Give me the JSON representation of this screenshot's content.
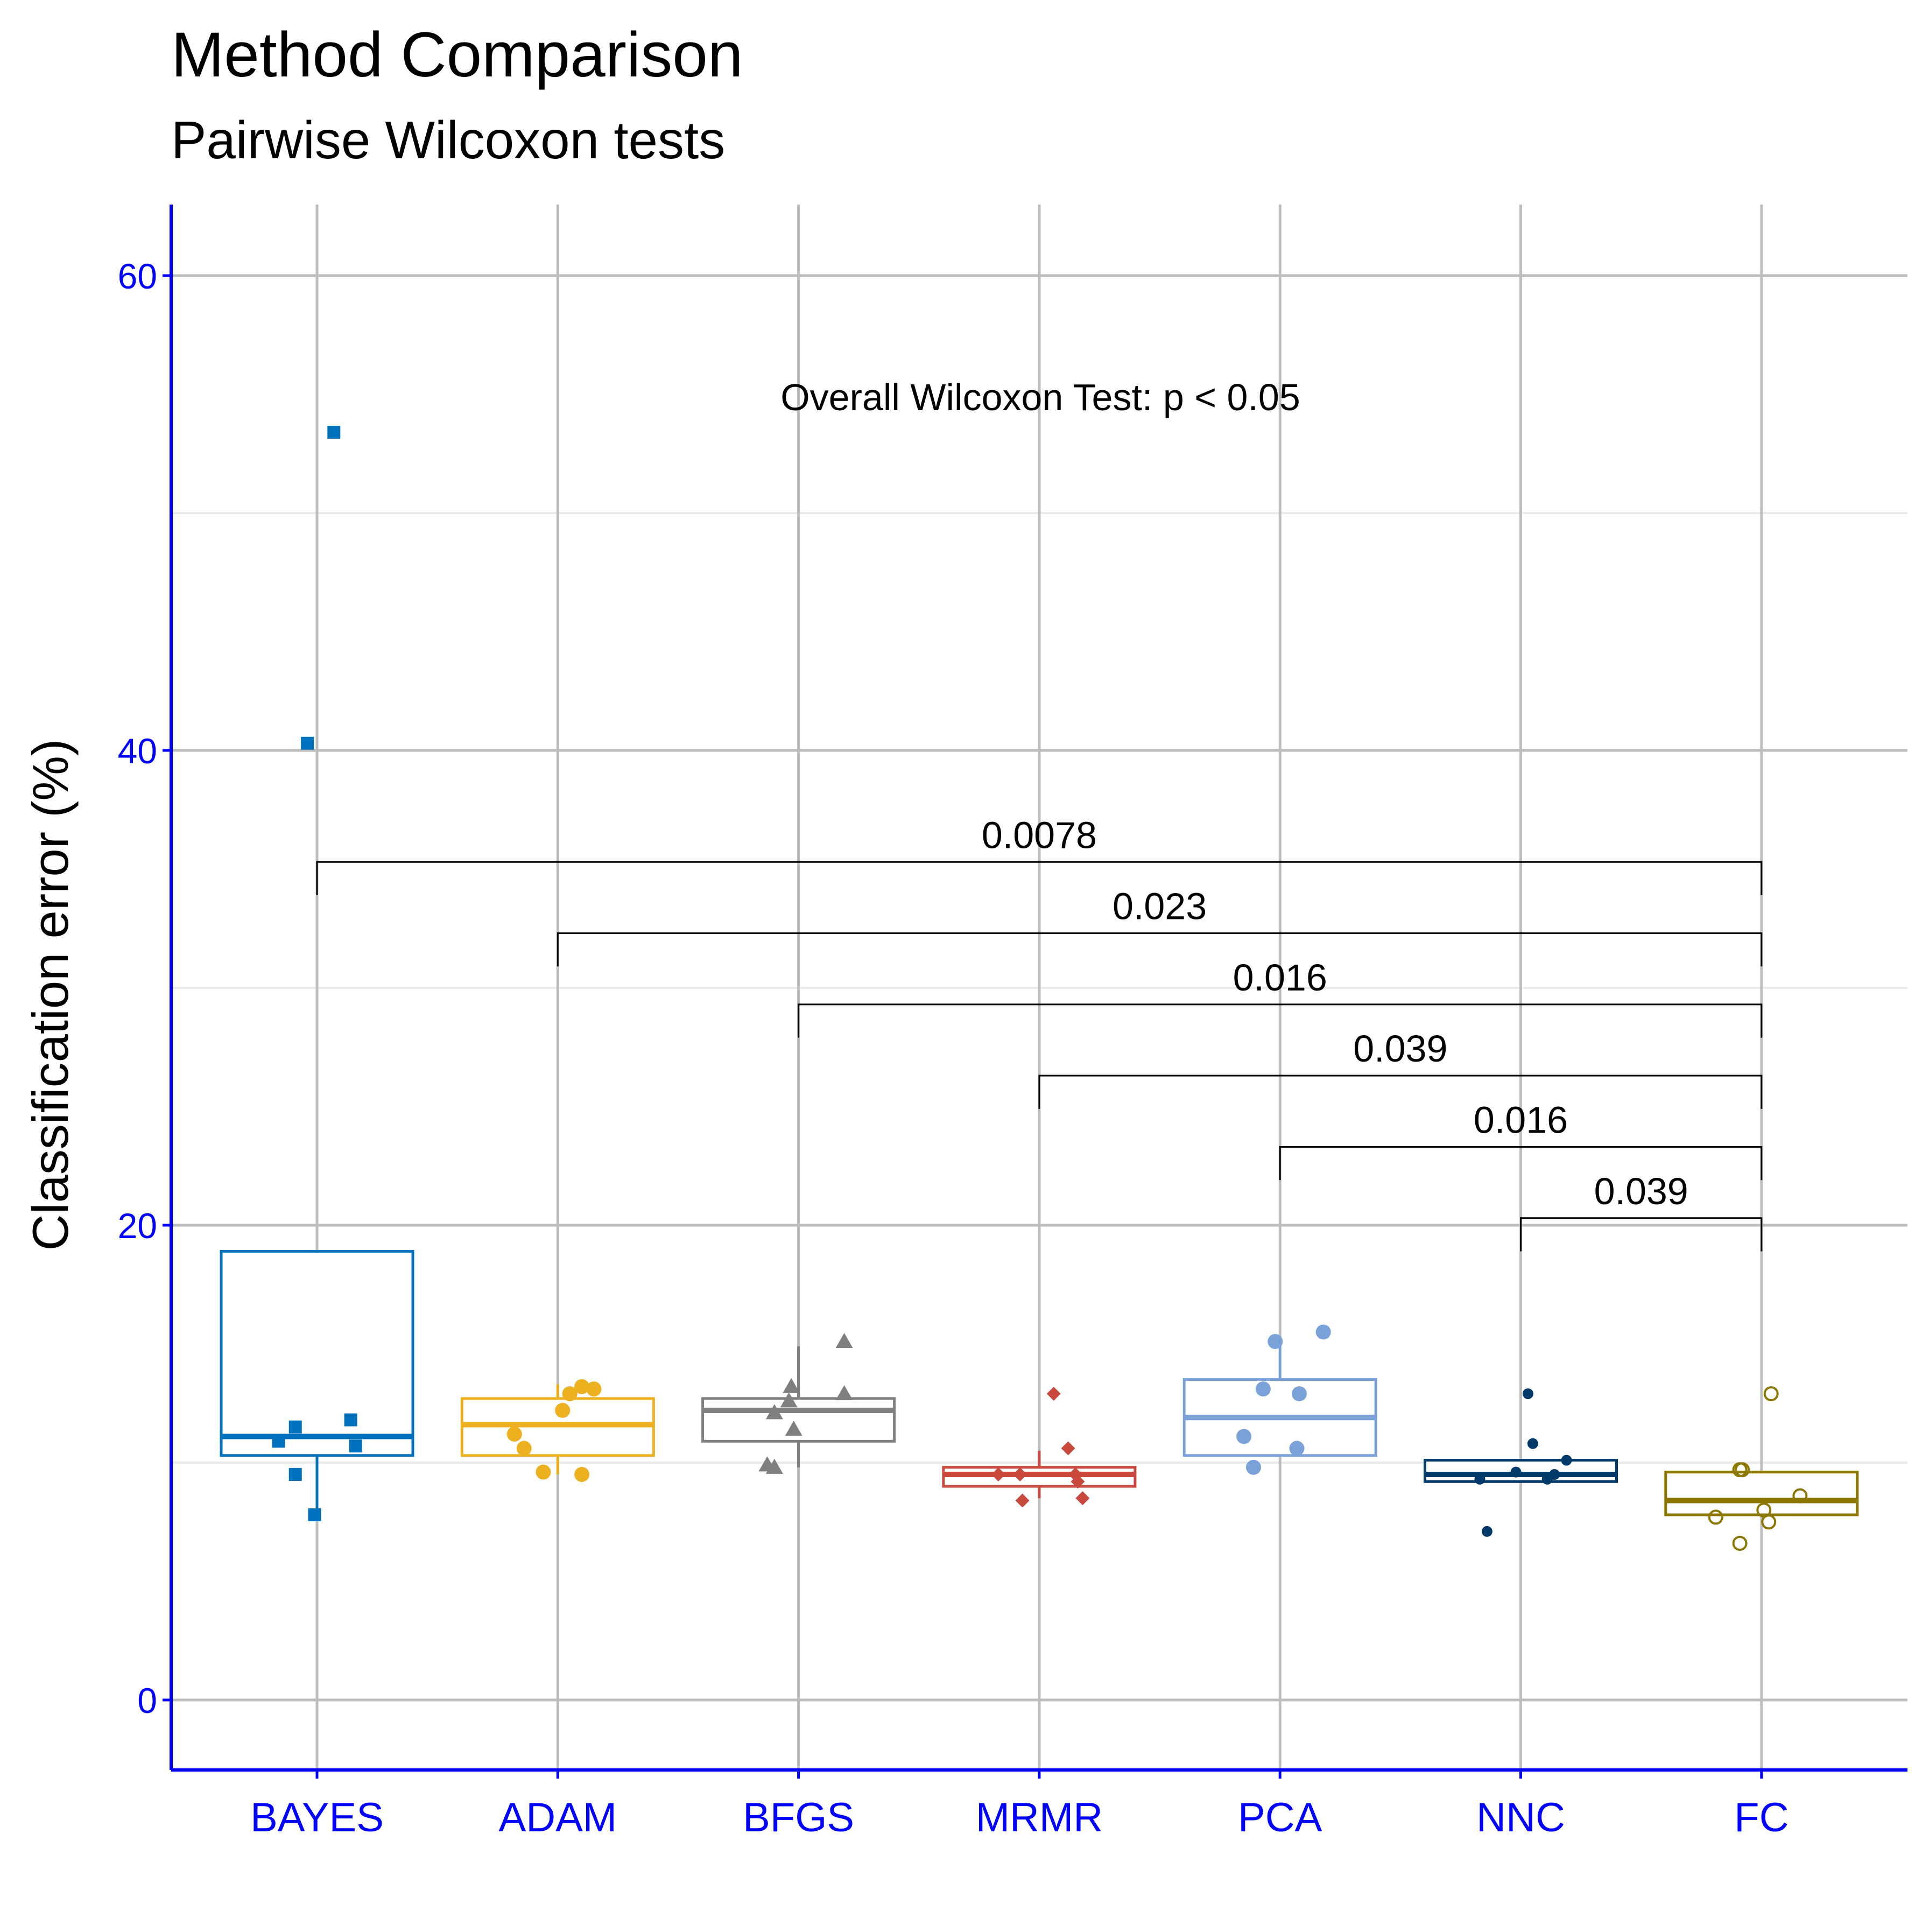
{
  "chart_data": {
    "type": "box",
    "title": "Method Comparison",
    "subtitle": "Pairwise Wilcoxon tests",
    "ylabel": "Classification error (%)",
    "xlabel": "",
    "ylim": [
      -3,
      63
    ],
    "yticks": [
      "0",
      "20",
      "40",
      "60"
    ],
    "grid": true,
    "annotation": "Overall Wilcoxon Test: p < 0.05",
    "categories": [
      "BAYES",
      "ADAM",
      "BFGS",
      "MRMR",
      "PCA",
      "NNC",
      "FC"
    ],
    "series": [
      {
        "category": "BAYES",
        "color": "#0072bd",
        "marker": "square",
        "box": {
          "q1": 10.3,
          "median": 11.1,
          "q3": 18.9,
          "whisker_low": 7.9,
          "whisker_high": 18.9
        },
        "points": [
          [
            -0.16,
            10.9
          ],
          [
            -0.09,
            11.5
          ],
          [
            -0.09,
            9.5
          ],
          [
            -0.01,
            7.8
          ],
          [
            0.14,
            11.8
          ],
          [
            0.16,
            10.7
          ],
          [
            -0.04,
            40.3
          ],
          [
            0.07,
            53.4
          ]
        ]
      },
      {
        "category": "ADAM",
        "color": "#edb120",
        "marker": "circle",
        "box": {
          "q1": 10.3,
          "median": 11.6,
          "q3": 12.7,
          "whisker_low": 9.5,
          "whisker_high": 13.3
        },
        "points": [
          [
            -0.18,
            11.2
          ],
          [
            -0.14,
            10.6
          ],
          [
            -0.06,
            9.6
          ],
          [
            0.02,
            12.2
          ],
          [
            0.05,
            12.9
          ],
          [
            0.1,
            13.2
          ],
          [
            0.15,
            13.1
          ],
          [
            0.1,
            9.5
          ]
        ]
      },
      {
        "category": "BFGS",
        "color": "#7f7f7f",
        "marker": "triangle",
        "box": {
          "q1": 10.9,
          "median": 12.2,
          "q3": 12.7,
          "whisker_low": 9.8,
          "whisker_high": 14.9
        },
        "points": [
          [
            -0.13,
            9.9
          ],
          [
            -0.1,
            9.8
          ],
          [
            -0.1,
            12.1
          ],
          [
            -0.04,
            12.6
          ],
          [
            -0.03,
            13.2
          ],
          [
            -0.02,
            11.4
          ],
          [
            0.19,
            15.1
          ],
          [
            0.19,
            12.9
          ]
        ]
      },
      {
        "category": "MRMR",
        "color": "#c9493c",
        "marker": "diamond",
        "box": {
          "q1": 9.0,
          "median": 9.5,
          "q3": 9.8,
          "whisker_low": 8.5,
          "whisker_high": 10.5
        },
        "points": [
          [
            -0.17,
            9.5
          ],
          [
            -0.08,
            9.5
          ],
          [
            -0.07,
            8.4
          ],
          [
            0.06,
            12.9
          ],
          [
            0.12,
            10.6
          ],
          [
            0.15,
            9.5
          ],
          [
            0.16,
            9.2
          ],
          [
            0.18,
            8.5
          ]
        ]
      },
      {
        "category": "PCA",
        "color": "#7aa2d8",
        "marker": "circle",
        "box": {
          "q1": 10.3,
          "median": 11.9,
          "q3": 13.5,
          "whisker_low": 10.3,
          "whisker_high": 15.2
        },
        "points": [
          [
            -0.15,
            11.1
          ],
          [
            -0.11,
            9.8
          ],
          [
            -0.07,
            13.1
          ],
          [
            -0.02,
            15.1
          ],
          [
            0.07,
            10.6
          ],
          [
            0.08,
            12.9
          ],
          [
            0.18,
            15.5
          ]
        ]
      },
      {
        "category": "NNC",
        "color": "#003a6b",
        "marker": "circle",
        "box": {
          "q1": 9.2,
          "median": 9.5,
          "q3": 10.1,
          "whisker_low": 9.2,
          "whisker_high": 10.1
        },
        "points": [
          [
            -0.17,
            9.3
          ],
          [
            -0.14,
            7.1
          ],
          [
            -0.02,
            9.6
          ],
          [
            0.03,
            12.9
          ],
          [
            0.05,
            10.8
          ],
          [
            0.11,
            9.3
          ],
          [
            0.14,
            9.5
          ],
          [
            0.19,
            10.1
          ]
        ]
      },
      {
        "category": "FC",
        "color": "#8c7700",
        "marker": "open-circle",
        "box": {
          "q1": 7.8,
          "median": 8.4,
          "q3": 9.6,
          "whisker_low": 7.8,
          "whisker_high": 9.6
        },
        "points": [
          [
            -0.19,
            7.7
          ],
          [
            -0.09,
            6.6
          ],
          [
            -0.09,
            9.7
          ],
          [
            -0.08,
            9.7
          ],
          [
            0.01,
            8.0
          ],
          [
            0.03,
            7.5
          ],
          [
            0.04,
            12.9
          ],
          [
            0.16,
            8.6
          ]
        ]
      }
    ],
    "comparisons": [
      {
        "group1": "BAYES",
        "group2": "FC",
        "p": "0.0078",
        "y": 35.3,
        "tip": 33.9
      },
      {
        "group1": "ADAM",
        "group2": "FC",
        "p": "0.023",
        "y": 32.3,
        "tip": 30.9
      },
      {
        "group1": "BFGS",
        "group2": "FC",
        "p": "0.016",
        "y": 29.3,
        "tip": 27.9
      },
      {
        "group1": "MRMR",
        "group2": "FC",
        "p": "0.039",
        "y": 26.3,
        "tip": 24.9
      },
      {
        "group1": "PCA",
        "group2": "FC",
        "p": "0.016",
        "y": 23.3,
        "tip": 21.9
      },
      {
        "group1": "NNC",
        "group2": "FC",
        "p": "0.039",
        "y": 20.3,
        "tip": 18.9
      }
    ]
  }
}
